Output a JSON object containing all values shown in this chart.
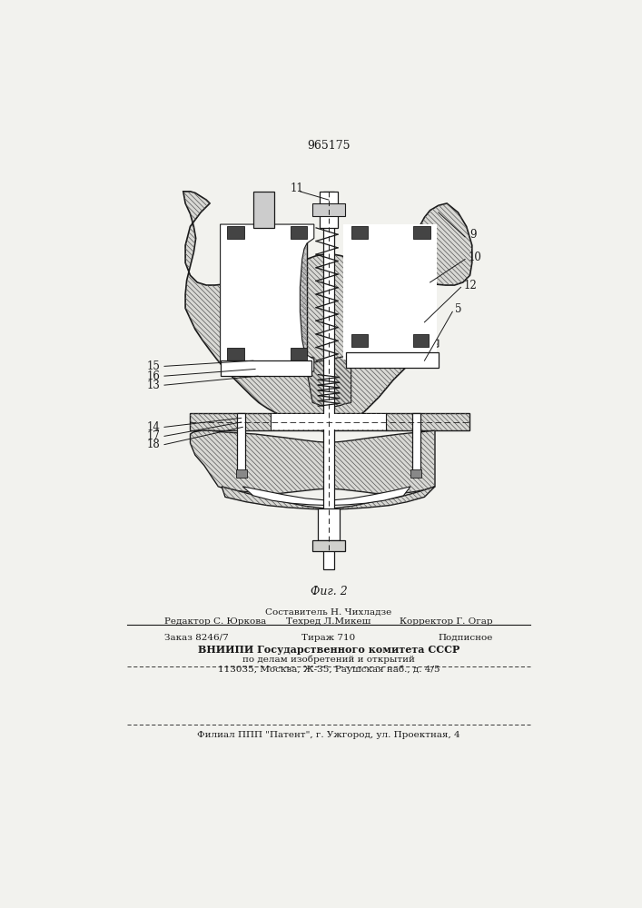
{
  "patent_number": "965175",
  "bg_color": "#f2f2ee",
  "line_color": "#1a1a1a",
  "fig_label": "Фиг. 2",
  "footer": {
    "line1_center": "Составитель Н. Чихладзе",
    "line2_left": "Редактор С. Юркова",
    "line2_center": "Техред Л.Микеш",
    "line2_right": "Корректор Г. Огар",
    "line3_left": "Заказ 8246/7",
    "line3_center": "Тираж 710",
    "line3_right": "Подписное",
    "line4": "ВНИИПИ Государственного комитета СССР",
    "line5": "по делам изобретений и открытий",
    "line6": "113035, Москва, Ж-35, Раушская наб., д. 4/5",
    "line7": "Филиал ППП \"Патент\", г. Ужгород, ул. Проектная, 4"
  }
}
